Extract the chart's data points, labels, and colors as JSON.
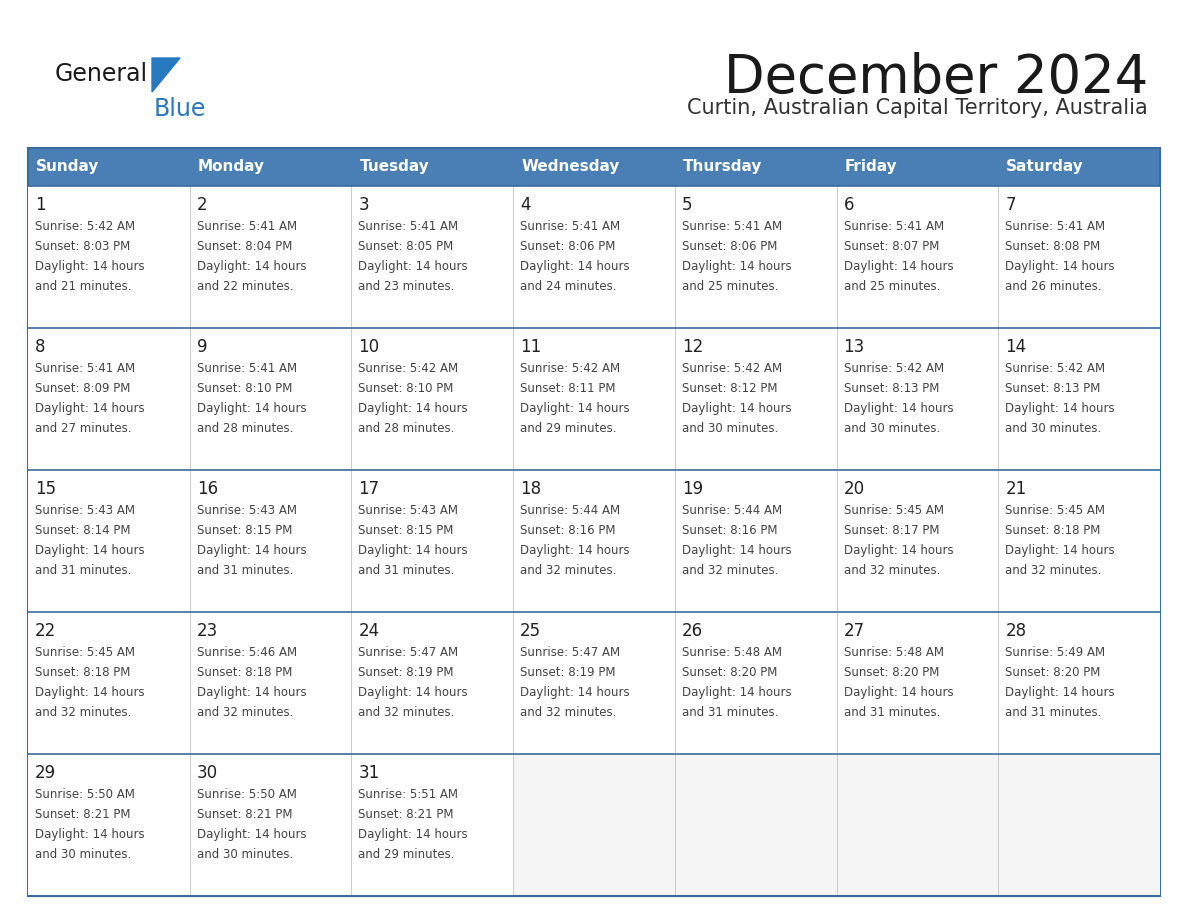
{
  "title": "December 2024",
  "subtitle": "Curtin, Australian Capital Territory, Australia",
  "days_of_week": [
    "Sunday",
    "Monday",
    "Tuesday",
    "Wednesday",
    "Thursday",
    "Friday",
    "Saturday"
  ],
  "header_bg": "#4a7fb5",
  "header_text": "#ffffff",
  "cell_bg": "#ffffff",
  "empty_cell_bg": "#f5f5f5",
  "border_color": "#3a6b9e",
  "separator_color": "#3a6b9e",
  "text_color": "#444444",
  "day_num_color": "#222222",
  "calendar_data": [
    [
      {
        "day": 1,
        "sunrise": "5:42 AM",
        "sunset": "8:03 PM",
        "daylight": "14 hours and 21 minutes."
      },
      {
        "day": 2,
        "sunrise": "5:41 AM",
        "sunset": "8:04 PM",
        "daylight": "14 hours and 22 minutes."
      },
      {
        "day": 3,
        "sunrise": "5:41 AM",
        "sunset": "8:05 PM",
        "daylight": "14 hours and 23 minutes."
      },
      {
        "day": 4,
        "sunrise": "5:41 AM",
        "sunset": "8:06 PM",
        "daylight": "14 hours and 24 minutes."
      },
      {
        "day": 5,
        "sunrise": "5:41 AM",
        "sunset": "8:06 PM",
        "daylight": "14 hours and 25 minutes."
      },
      {
        "day": 6,
        "sunrise": "5:41 AM",
        "sunset": "8:07 PM",
        "daylight": "14 hours and 25 minutes."
      },
      {
        "day": 7,
        "sunrise": "5:41 AM",
        "sunset": "8:08 PM",
        "daylight": "14 hours and 26 minutes."
      }
    ],
    [
      {
        "day": 8,
        "sunrise": "5:41 AM",
        "sunset": "8:09 PM",
        "daylight": "14 hours and 27 minutes."
      },
      {
        "day": 9,
        "sunrise": "5:41 AM",
        "sunset": "8:10 PM",
        "daylight": "14 hours and 28 minutes."
      },
      {
        "day": 10,
        "sunrise": "5:42 AM",
        "sunset": "8:10 PM",
        "daylight": "14 hours and 28 minutes."
      },
      {
        "day": 11,
        "sunrise": "5:42 AM",
        "sunset": "8:11 PM",
        "daylight": "14 hours and 29 minutes."
      },
      {
        "day": 12,
        "sunrise": "5:42 AM",
        "sunset": "8:12 PM",
        "daylight": "14 hours and 30 minutes."
      },
      {
        "day": 13,
        "sunrise": "5:42 AM",
        "sunset": "8:13 PM",
        "daylight": "14 hours and 30 minutes."
      },
      {
        "day": 14,
        "sunrise": "5:42 AM",
        "sunset": "8:13 PM",
        "daylight": "14 hours and 30 minutes."
      }
    ],
    [
      {
        "day": 15,
        "sunrise": "5:43 AM",
        "sunset": "8:14 PM",
        "daylight": "14 hours and 31 minutes."
      },
      {
        "day": 16,
        "sunrise": "5:43 AM",
        "sunset": "8:15 PM",
        "daylight": "14 hours and 31 minutes."
      },
      {
        "day": 17,
        "sunrise": "5:43 AM",
        "sunset": "8:15 PM",
        "daylight": "14 hours and 31 minutes."
      },
      {
        "day": 18,
        "sunrise": "5:44 AM",
        "sunset": "8:16 PM",
        "daylight": "14 hours and 32 minutes."
      },
      {
        "day": 19,
        "sunrise": "5:44 AM",
        "sunset": "8:16 PM",
        "daylight": "14 hours and 32 minutes."
      },
      {
        "day": 20,
        "sunrise": "5:45 AM",
        "sunset": "8:17 PM",
        "daylight": "14 hours and 32 minutes."
      },
      {
        "day": 21,
        "sunrise": "5:45 AM",
        "sunset": "8:18 PM",
        "daylight": "14 hours and 32 minutes."
      }
    ],
    [
      {
        "day": 22,
        "sunrise": "5:45 AM",
        "sunset": "8:18 PM",
        "daylight": "14 hours and 32 minutes."
      },
      {
        "day": 23,
        "sunrise": "5:46 AM",
        "sunset": "8:18 PM",
        "daylight": "14 hours and 32 minutes."
      },
      {
        "day": 24,
        "sunrise": "5:47 AM",
        "sunset": "8:19 PM",
        "daylight": "14 hours and 32 minutes."
      },
      {
        "day": 25,
        "sunrise": "5:47 AM",
        "sunset": "8:19 PM",
        "daylight": "14 hours and 32 minutes."
      },
      {
        "day": 26,
        "sunrise": "5:48 AM",
        "sunset": "8:20 PM",
        "daylight": "14 hours and 31 minutes."
      },
      {
        "day": 27,
        "sunrise": "5:48 AM",
        "sunset": "8:20 PM",
        "daylight": "14 hours and 31 minutes."
      },
      {
        "day": 28,
        "sunrise": "5:49 AM",
        "sunset": "8:20 PM",
        "daylight": "14 hours and 31 minutes."
      }
    ],
    [
      {
        "day": 29,
        "sunrise": "5:50 AM",
        "sunset": "8:21 PM",
        "daylight": "14 hours and 30 minutes."
      },
      {
        "day": 30,
        "sunrise": "5:50 AM",
        "sunset": "8:21 PM",
        "daylight": "14 hours and 30 minutes."
      },
      {
        "day": 31,
        "sunrise": "5:51 AM",
        "sunset": "8:21 PM",
        "daylight": "14 hours and 29 minutes."
      },
      null,
      null,
      null,
      null
    ]
  ],
  "logo_text1": "General",
  "logo_text2": "Blue",
  "logo_text1_color": "#1a1a1a",
  "logo_text2_color": "#2878c0",
  "logo_triangle_color": "#2878c0",
  "title_color": "#1a1a1a",
  "subtitle_color": "#333333"
}
